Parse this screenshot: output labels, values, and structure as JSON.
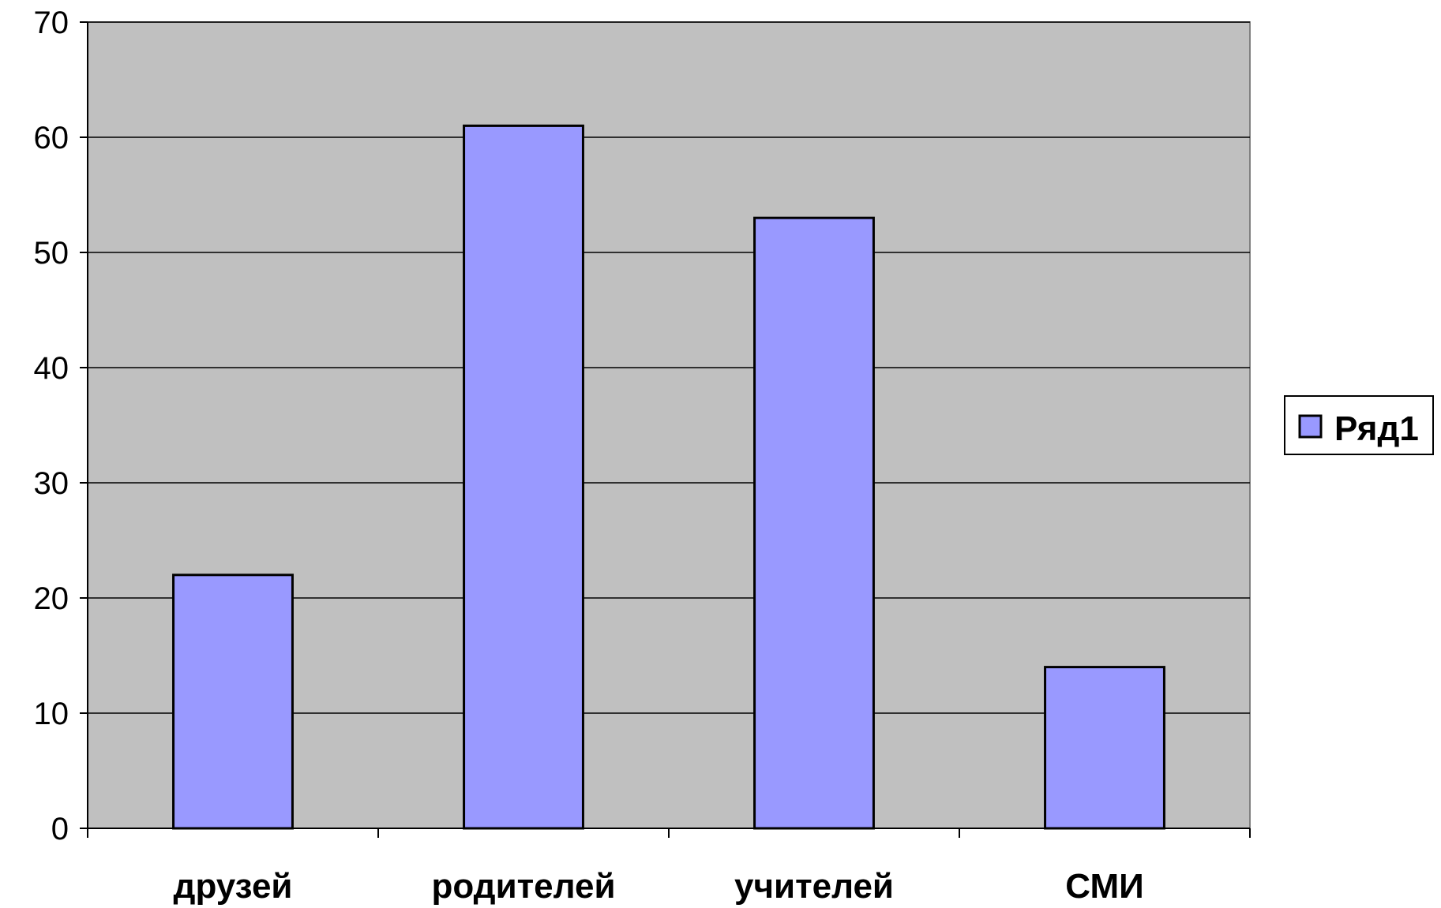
{
  "chart_data": {
    "type": "bar",
    "categories": [
      "друзей",
      "родителей",
      "учителей",
      "СМИ"
    ],
    "series": [
      {
        "name": "Ряд1",
        "values": [
          22,
          61,
          53,
          14
        ]
      }
    ],
    "yticks": [
      "0",
      "10",
      "20",
      "30",
      "40",
      "50",
      "60",
      "70"
    ],
    "ylim": [
      0,
      70
    ],
    "grid": true,
    "legend_position": "right",
    "colors": {
      "plot_background": "#c0c0c0",
      "bar_fill": "#9999ff",
      "bar_stroke": "#000000",
      "gridline": "#000000"
    }
  }
}
